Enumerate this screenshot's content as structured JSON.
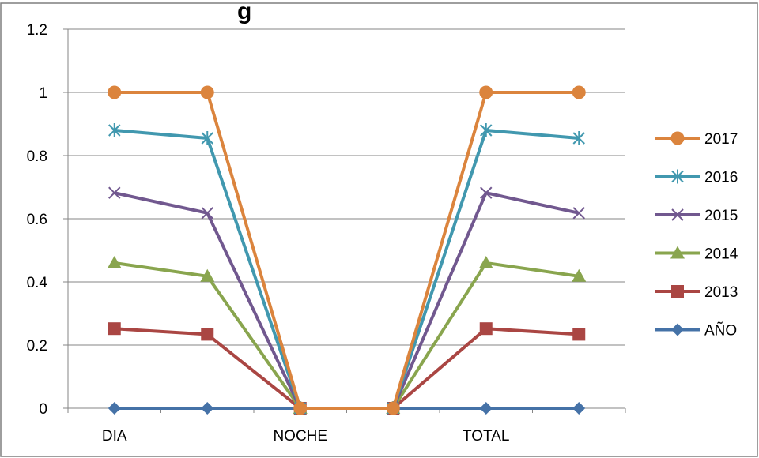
{
  "chart_data": {
    "type": "line",
    "title": "g",
    "categories": [
      "DIA",
      "",
      "NOCHE",
      "",
      "TOTAL",
      ""
    ],
    "ylim": [
      0,
      1.2
    ],
    "yticks": [
      0,
      0.2,
      0.4,
      0.6,
      0.8,
      1,
      1.2
    ],
    "grid": true,
    "legend_position": "right",
    "series": [
      {
        "name": "AÑO",
        "color": "#4572A7",
        "marker": "diamond",
        "values": [
          0,
          0,
          0,
          0,
          0,
          0
        ]
      },
      {
        "name": "2013",
        "color": "#AA4643",
        "marker": "square",
        "values": [
          0.252,
          0.234,
          0,
          0,
          0.252,
          0.234
        ]
      },
      {
        "name": "2014",
        "color": "#89A54E",
        "marker": "triangle",
        "values": [
          0.46,
          0.418,
          0,
          0,
          0.46,
          0.418
        ]
      },
      {
        "name": "2015",
        "color": "#71588F",
        "marker": "x",
        "values": [
          0.682,
          0.618,
          0,
          0,
          0.682,
          0.618
        ]
      },
      {
        "name": "2016",
        "color": "#4198AF",
        "marker": "star",
        "values": [
          0.88,
          0.855,
          0,
          0,
          0.88,
          0.855
        ]
      },
      {
        "name": "2017",
        "color": "#DB843D",
        "marker": "circle",
        "values": [
          1,
          1,
          0,
          0,
          1,
          1
        ]
      }
    ]
  }
}
